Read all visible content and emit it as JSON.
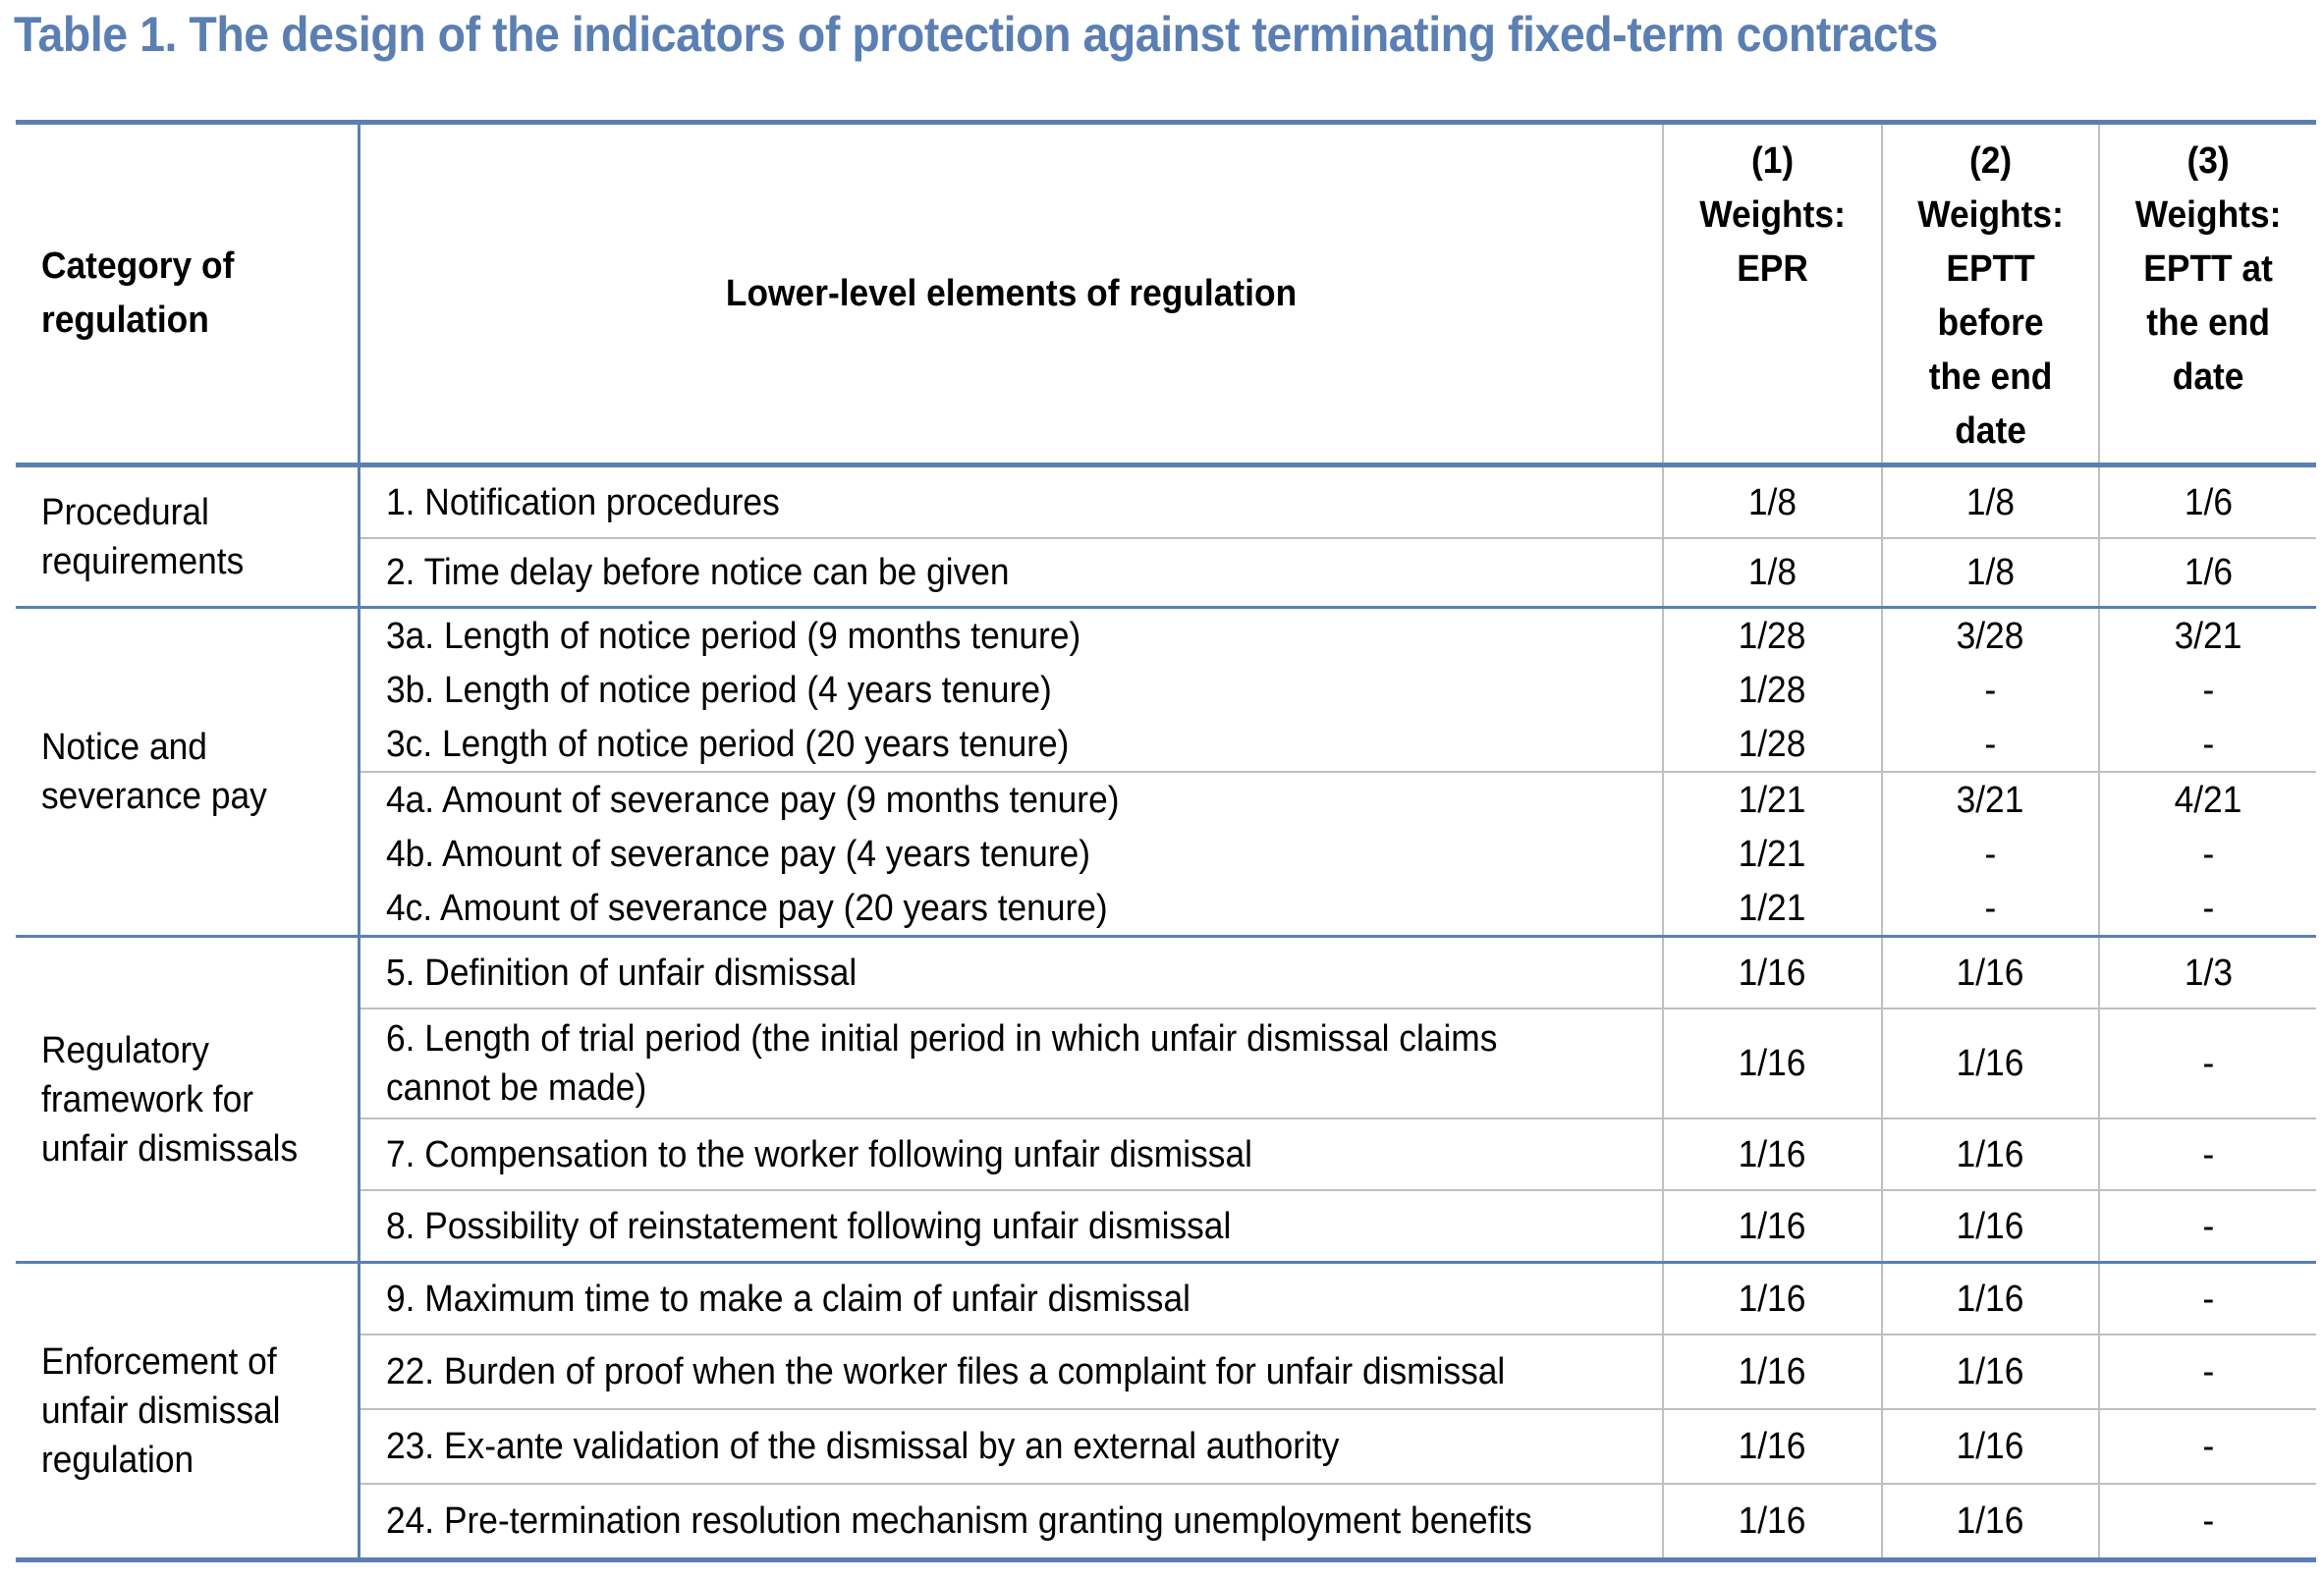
{
  "title": "Table 1. The design of the indicators of protection against terminating fixed-term contracts",
  "headers": {
    "category": [
      "Category of",
      "regulation"
    ],
    "elements": "Lower-level elements of regulation",
    "weights": [
      [
        "(1)",
        "Weights:",
        "EPR"
      ],
      [
        "(2)",
        "Weights:",
        "EPTT",
        "before",
        "the end",
        "date"
      ],
      [
        "(3)",
        "Weights:",
        "EPTT at",
        "the end",
        "date"
      ]
    ]
  },
  "groups": [
    {
      "category": [
        "Procedural",
        "requirements"
      ],
      "rows": [
        {
          "element": "1. Notification procedures",
          "w1": "1/8",
          "w2": "1/8",
          "w3": "1/6"
        },
        {
          "element": "2. Time delay before notice can be given",
          "w1": "1/8",
          "w2": "1/8",
          "w3": "1/6"
        }
      ]
    },
    {
      "category": [
        "Notice and",
        "severance pay"
      ],
      "rows": [
        {
          "element": "3a. Length of notice period (9 months tenure)",
          "w1": "1/28",
          "w2": "3/28",
          "w3": "3/21"
        },
        {
          "element": "3b. Length of notice period (4 years tenure)",
          "w1": "1/28",
          "w2": "-",
          "w3": "-"
        },
        {
          "element": "3c. Length of notice period (20 years tenure)",
          "w1": "1/28",
          "w2": "-",
          "w3": "-"
        },
        {
          "element": "4a. Amount of severance pay (9 months tenure)",
          "w1": "1/21",
          "w2": "3/21",
          "w3": "4/21"
        },
        {
          "element": "4b. Amount of severance pay (4 years tenure)",
          "w1": "1/21",
          "w2": "-",
          "w3": "-"
        },
        {
          "element": "4c. Amount of severance pay (20 years tenure)",
          "w1": "1/21",
          "w2": "-",
          "w3": "-"
        }
      ]
    },
    {
      "category": [
        "Regulatory",
        "framework for",
        "unfair dismissals"
      ],
      "rows": [
        {
          "element": "5. Definition of unfair dismissal",
          "w1": "1/16",
          "w2": "1/16",
          "w3": "1/3"
        },
        {
          "element": "6. Length of trial period (the initial period in which unfair dismissal claims cannot be made)",
          "w1": "1/16",
          "w2": "1/16",
          "w3": "-"
        },
        {
          "element": "7. Compensation to the worker following unfair dismissal",
          "w1": "1/16",
          "w2": "1/16",
          "w3": "-"
        },
        {
          "element": "8. Possibility of reinstatement following unfair dismissal",
          "w1": "1/16",
          "w2": "1/16",
          "w3": "-"
        }
      ]
    },
    {
      "category": [
        "Enforcement of",
        "unfair dismissal",
        "regulation"
      ],
      "rows": [
        {
          "element": "9. Maximum time to make a claim of unfair dismissal",
          "w1": "1/16",
          "w2": "1/16",
          "w3": "-"
        },
        {
          "element": "22. Burden of proof when the worker files a complaint for unfair dismissal",
          "w1": "1/16",
          "w2": "1/16",
          "w3": "-"
        },
        {
          "element": "23. Ex-ante validation of the dismissal by an external authority",
          "w1": "1/16",
          "w2": "1/16",
          "w3": "-"
        },
        {
          "element": "24. Pre-termination resolution mechanism granting unemployment benefits",
          "w1": "1/16",
          "w2": "1/16",
          "w3": "-"
        }
      ]
    }
  ]
}
